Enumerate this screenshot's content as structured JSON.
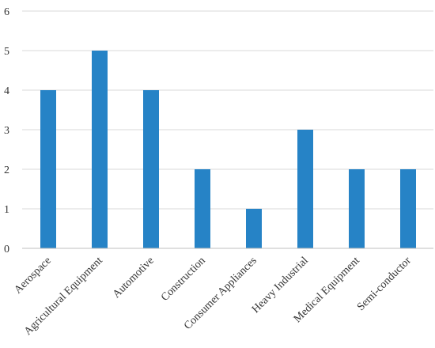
{
  "chart_data": {
    "type": "bar",
    "categories": [
      "Aerospace",
      "Agricultural Equipment",
      "Automotive",
      "Construction",
      "Consumer Appliances",
      "Heavy Industrial",
      "Medical Equipment",
      "Semi-conductor"
    ],
    "values": [
      4,
      5,
      4,
      2,
      1,
      3,
      2,
      2
    ],
    "ylim": [
      0,
      6
    ],
    "yticks": [
      "0",
      "1",
      "2",
      "3",
      "4",
      "5",
      "6"
    ],
    "title": "",
    "xlabel": "",
    "ylabel": "",
    "grid": true,
    "legend": "none",
    "bar_color": "#2683c6",
    "grid_color": "#d9d9d9"
  }
}
